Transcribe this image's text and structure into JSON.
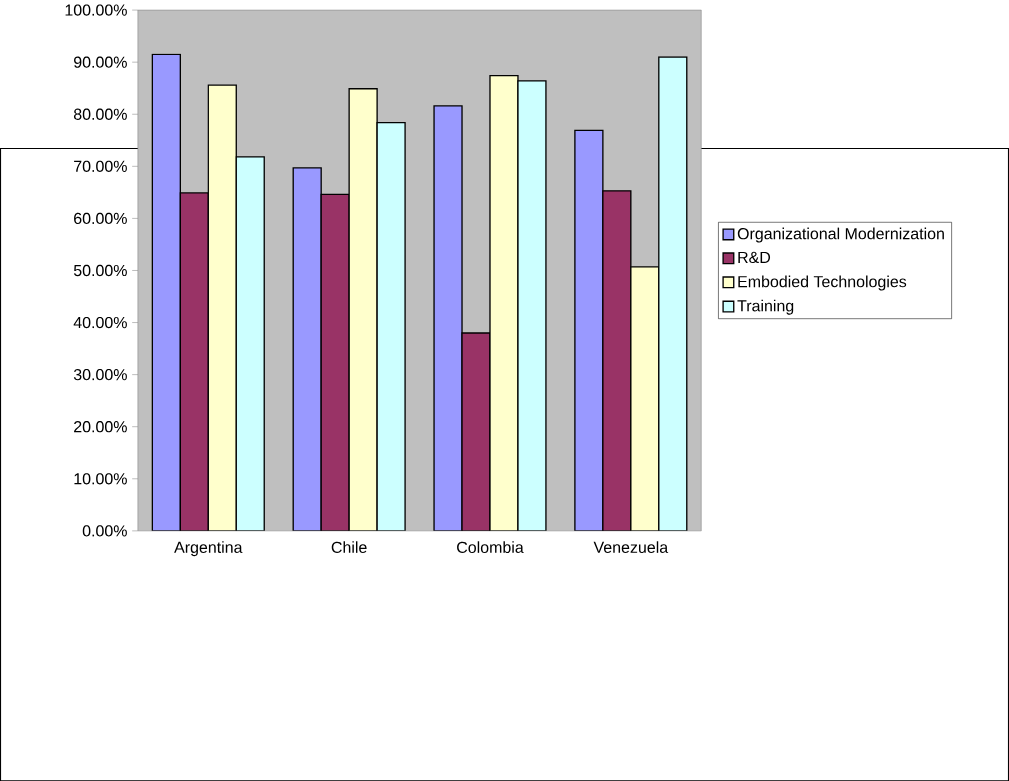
{
  "chart_data": {
    "type": "bar",
    "categories": [
      "Argentina",
      "Chile",
      "Colombia",
      "Venezuela"
    ],
    "series": [
      {
        "name": "Organizational Modernization",
        "color": "#9999ff",
        "values": [
          91.5,
          69.7,
          81.6,
          76.9
        ]
      },
      {
        "name": "R&D",
        "color": "#993366",
        "values": [
          64.9,
          64.6,
          38.0,
          65.3
        ]
      },
      {
        "name": "Embodied Technologies",
        "color": "#ffffcc",
        "values": [
          85.6,
          84.9,
          87.4,
          50.7
        ]
      },
      {
        "name": "Training",
        "color": "#ccffff",
        "values": [
          71.8,
          78.4,
          86.4,
          91.0
        ]
      }
    ],
    "ylim": [
      0,
      100
    ],
    "yticks": [
      {
        "value": 0,
        "label": "0.00%"
      },
      {
        "value": 10,
        "label": "10.00%"
      },
      {
        "value": 20,
        "label": "20.00%"
      },
      {
        "value": 30,
        "label": "30.00%"
      },
      {
        "value": 40,
        "label": "40.00%"
      },
      {
        "value": 50,
        "label": "50.00%"
      },
      {
        "value": 60,
        "label": "60.00%"
      },
      {
        "value": 70,
        "label": "70.00%"
      },
      {
        "value": 80,
        "label": "80.00%"
      },
      {
        "value": 90,
        "label": "90.00%"
      },
      {
        "value": 100,
        "label": "100.00%"
      }
    ],
    "legend": "right",
    "grid": false
  }
}
